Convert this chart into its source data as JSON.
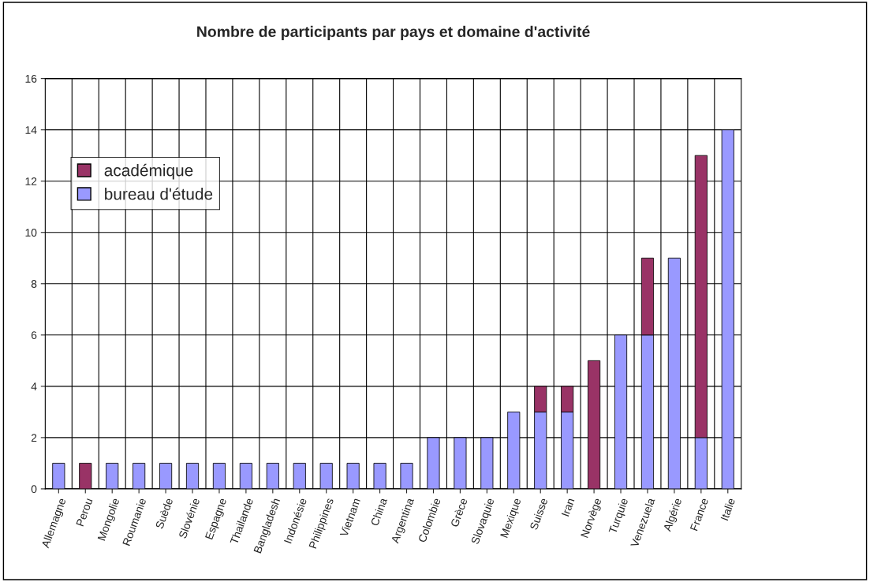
{
  "chart_data": {
    "type": "bar",
    "stacked": true,
    "title": "Nombre de participants par pays et domaine d'activité",
    "categories": [
      "Allemagne",
      "Perou",
      "Mongolie",
      "Roumanie",
      "Suède",
      "Slovénie",
      "Espagne",
      "Thailande",
      "Bangladesh",
      "Indonésie",
      "Philippines",
      "Vietnam",
      "China",
      "Argentina",
      "Colombie",
      "Grèce",
      "Slovaquie",
      "Mexique",
      "Suisse",
      "Iran",
      "Norvège",
      "Turquie",
      "Venezuela",
      "Algérie",
      "France",
      "Italie"
    ],
    "series": [
      {
        "name": "bureau d'étude",
        "color": "#9999ff",
        "values": [
          1,
          0,
          1,
          1,
          1,
          1,
          1,
          1,
          1,
          1,
          1,
          1,
          1,
          1,
          2,
          2,
          2,
          3,
          3,
          3,
          0,
          6,
          6,
          9,
          2,
          14
        ]
      },
      {
        "name": "académique",
        "color": "#993366",
        "values": [
          0,
          1,
          0,
          0,
          0,
          0,
          0,
          0,
          0,
          0,
          0,
          0,
          0,
          0,
          0,
          0,
          0,
          0,
          1,
          1,
          5,
          0,
          3,
          0,
          11,
          0
        ]
      }
    ],
    "ylim": [
      0,
      16
    ],
    "yticks": [
      0,
      2,
      4,
      6,
      8,
      10,
      12,
      14,
      16
    ],
    "grid": true,
    "legend": "top left"
  }
}
